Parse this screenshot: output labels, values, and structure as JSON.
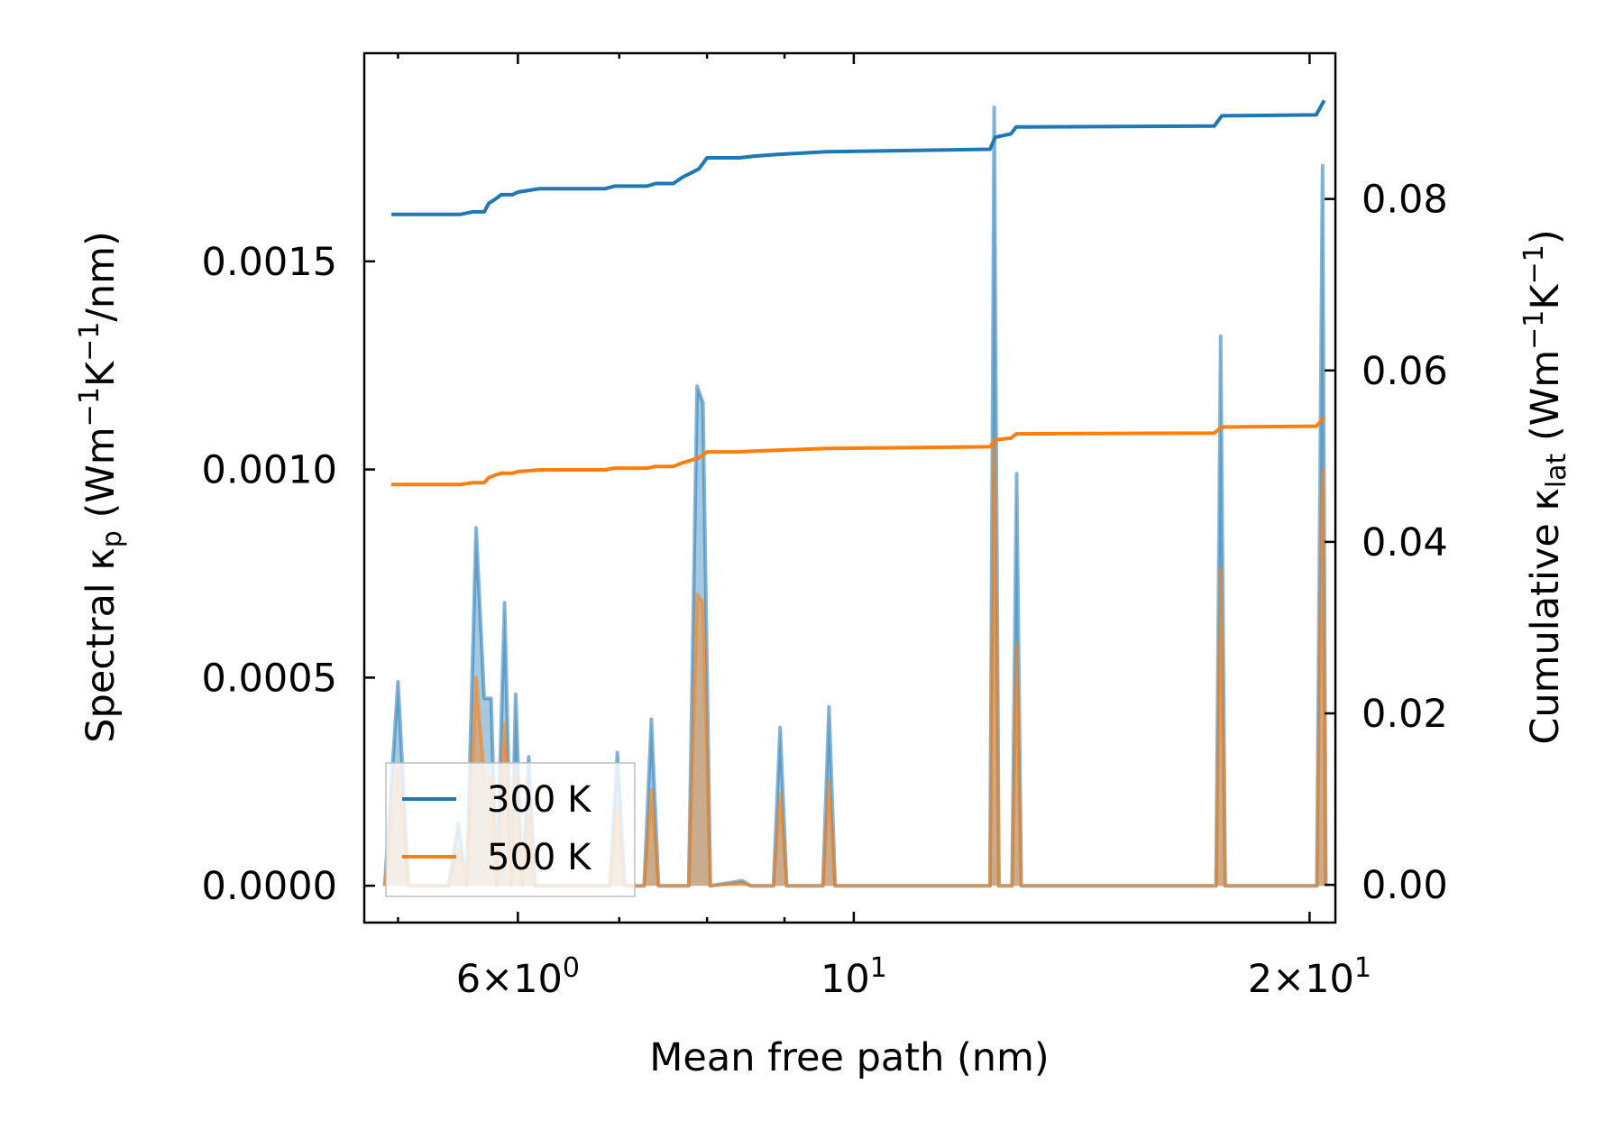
{
  "chart_data": {
    "type": "line",
    "title": "",
    "xlabel": "Mean free path (nm)",
    "ylabel_left": {
      "text": "Spectral κ",
      "sub": "p",
      "units_text": " (Wm",
      "sup1": "−1",
      "mid": "K",
      "sup2": "−1",
      "tail": "/nm)"
    },
    "ylabel_right": {
      "text": "Cumulative κ",
      "sub": "lat",
      "units_text": " (Wm",
      "sup1": "−1",
      "mid": "K",
      "sup2": "−1",
      "tail": ")"
    },
    "x_scale": "log",
    "xlim": [
      4.75,
      20.8
    ],
    "ylim_left": [
      -8.85e-05,
      0.002
    ],
    "ylim_right": [
      -0.0044,
      0.097
    ],
    "x_major_ticks": [
      {
        "value": 6,
        "mant": "6",
        "times": "×",
        "base": "10",
        "exp": "0"
      },
      {
        "value": 10,
        "mant": "",
        "times": "",
        "base": "10",
        "exp": "1"
      },
      {
        "value": 20,
        "mant": "2",
        "times": "×",
        "base": "10",
        "exp": "1"
      }
    ],
    "x_minor_ticks": [
      5,
      7,
      8,
      9
    ],
    "y_left_ticks": [
      "0.0000",
      "0.0005",
      "0.0010",
      "0.0015"
    ],
    "y_right_ticks": [
      "0.00",
      "0.02",
      "0.04",
      "0.06",
      "0.08"
    ],
    "legend": {
      "location": "lower-left",
      "entries": [
        "300 K",
        "500 K"
      ]
    },
    "colors": {
      "series_300": "#1f77b4",
      "series_500": "#ff7f0e"
    },
    "spectral_series": [
      {
        "name": "300 K",
        "points": [
          [
            4.9,
            0
          ],
          [
            5.0,
            0.00049
          ],
          [
            5.08,
            0
          ],
          [
            5.4,
            0
          ],
          [
            5.48,
            0.00015
          ],
          [
            5.55,
            0
          ],
          [
            5.63,
            0.00086
          ],
          [
            5.7,
            0.00045
          ],
          [
            5.76,
            0.00045
          ],
          [
            5.81,
            0
          ],
          [
            5.88,
            0.00068
          ],
          [
            5.94,
            0
          ],
          [
            5.98,
            0.00046
          ],
          [
            6.04,
            0
          ],
          [
            6.1,
            0.00031
          ],
          [
            6.16,
            0
          ],
          [
            6.9,
            0
          ],
          [
            6.98,
            0.00032
          ],
          [
            7.06,
            0
          ],
          [
            7.27,
            0
          ],
          [
            7.35,
            0.0004
          ],
          [
            7.43,
            0
          ],
          [
            7.78,
            0
          ],
          [
            7.88,
            0.0012
          ],
          [
            7.95,
            0.00116
          ],
          [
            8.04,
            0
          ],
          [
            8.44,
            1.2e-05
          ],
          [
            8.55,
            0
          ],
          [
            8.85,
            0
          ],
          [
            8.94,
            0.00038
          ],
          [
            9.03,
            0
          ],
          [
            9.54,
            0
          ],
          [
            9.63,
            0.00043
          ],
          [
            9.72,
            0
          ],
          [
            12.3,
            0
          ],
          [
            12.38,
            0.00187
          ],
          [
            12.47,
            0
          ],
          [
            12.72,
            0
          ],
          [
            12.81,
            0.00099
          ],
          [
            12.9,
            0
          ],
          [
            17.35,
            0
          ],
          [
            17.47,
            0.00132
          ],
          [
            17.59,
            0
          ],
          [
            20.22,
            0
          ],
          [
            20.4,
            0.00173
          ],
          [
            20.5,
            0
          ]
        ]
      },
      {
        "name": "500 K",
        "points": [
          [
            4.9,
            0
          ],
          [
            5.0,
            0.00028
          ],
          [
            5.08,
            0
          ],
          [
            5.4,
            0
          ],
          [
            5.48,
            9e-05
          ],
          [
            5.55,
            0
          ],
          [
            5.63,
            0.0005
          ],
          [
            5.7,
            0.00026
          ],
          [
            5.76,
            0.00026
          ],
          [
            5.81,
            0
          ],
          [
            5.88,
            0.00039
          ],
          [
            5.94,
            0
          ],
          [
            5.98,
            0.00027
          ],
          [
            6.04,
            0
          ],
          [
            6.1,
            0.00018
          ],
          [
            6.16,
            0
          ],
          [
            6.9,
            0
          ],
          [
            6.98,
            0.00018
          ],
          [
            7.06,
            0
          ],
          [
            7.27,
            0
          ],
          [
            7.35,
            0.00023
          ],
          [
            7.43,
            0
          ],
          [
            7.78,
            0
          ],
          [
            7.88,
            0.0007
          ],
          [
            7.95,
            0.00068
          ],
          [
            8.04,
            0
          ],
          [
            8.44,
            7e-06
          ],
          [
            8.55,
            0
          ],
          [
            8.85,
            0
          ],
          [
            8.94,
            0.00022
          ],
          [
            9.03,
            0
          ],
          [
            9.54,
            0
          ],
          [
            9.63,
            0.00025
          ],
          [
            9.72,
            0
          ],
          [
            12.3,
            0
          ],
          [
            12.38,
            0.00106
          ],
          [
            12.47,
            0
          ],
          [
            12.72,
            0
          ],
          [
            12.81,
            0.00058
          ],
          [
            12.9,
            0
          ],
          [
            17.35,
            0
          ],
          [
            17.47,
            0.00076
          ],
          [
            17.59,
            0
          ],
          [
            20.22,
            0
          ],
          [
            20.4,
            0.001
          ],
          [
            20.5,
            0
          ]
        ]
      }
    ],
    "cumulative_series": [
      {
        "name": "300 K",
        "points": [
          [
            4.95,
            0.0782
          ],
          [
            5.5,
            0.0782
          ],
          [
            5.6,
            0.0785
          ],
          [
            5.7,
            0.0785
          ],
          [
            5.74,
            0.0795
          ],
          [
            5.8,
            0.08
          ],
          [
            5.85,
            0.0805
          ],
          [
            5.95,
            0.0805
          ],
          [
            6.0,
            0.0808
          ],
          [
            6.1,
            0.081
          ],
          [
            6.2,
            0.0812
          ],
          [
            6.5,
            0.0812
          ],
          [
            6.85,
            0.0812
          ],
          [
            6.95,
            0.0815
          ],
          [
            7.3,
            0.0815
          ],
          [
            7.4,
            0.0818
          ],
          [
            7.6,
            0.0818
          ],
          [
            7.7,
            0.0825
          ],
          [
            7.9,
            0.0835
          ],
          [
            8.0,
            0.0848
          ],
          [
            8.4,
            0.0848
          ],
          [
            8.6,
            0.085
          ],
          [
            8.9,
            0.0852
          ],
          [
            9.6,
            0.0855
          ],
          [
            12.3,
            0.0858
          ],
          [
            12.4,
            0.0872
          ],
          [
            12.7,
            0.0876
          ],
          [
            12.8,
            0.0884
          ],
          [
            17.3,
            0.0885
          ],
          [
            17.5,
            0.0897
          ],
          [
            20.2,
            0.0898
          ],
          [
            20.45,
            0.0915
          ]
        ]
      },
      {
        "name": "500 K",
        "points": [
          [
            4.95,
            0.0467
          ],
          [
            5.5,
            0.0467
          ],
          [
            5.6,
            0.0469
          ],
          [
            5.7,
            0.0469
          ],
          [
            5.74,
            0.0475
          ],
          [
            5.8,
            0.0478
          ],
          [
            5.85,
            0.048
          ],
          [
            5.95,
            0.048
          ],
          [
            6.0,
            0.0482
          ],
          [
            6.1,
            0.0483
          ],
          [
            6.2,
            0.0484
          ],
          [
            6.5,
            0.0484
          ],
          [
            6.85,
            0.0484
          ],
          [
            6.95,
            0.0486
          ],
          [
            7.3,
            0.0486
          ],
          [
            7.4,
            0.0488
          ],
          [
            7.6,
            0.0488
          ],
          [
            7.7,
            0.0492
          ],
          [
            7.9,
            0.0498
          ],
          [
            8.0,
            0.0505
          ],
          [
            8.4,
            0.0505
          ],
          [
            8.6,
            0.0506
          ],
          [
            8.9,
            0.0507
          ],
          [
            9.6,
            0.0509
          ],
          [
            12.3,
            0.0511
          ],
          [
            12.4,
            0.0519
          ],
          [
            12.7,
            0.0521
          ],
          [
            12.8,
            0.0526
          ],
          [
            17.3,
            0.0527
          ],
          [
            17.5,
            0.0534
          ],
          [
            20.2,
            0.0535
          ],
          [
            20.45,
            0.0545
          ]
        ]
      }
    ]
  }
}
